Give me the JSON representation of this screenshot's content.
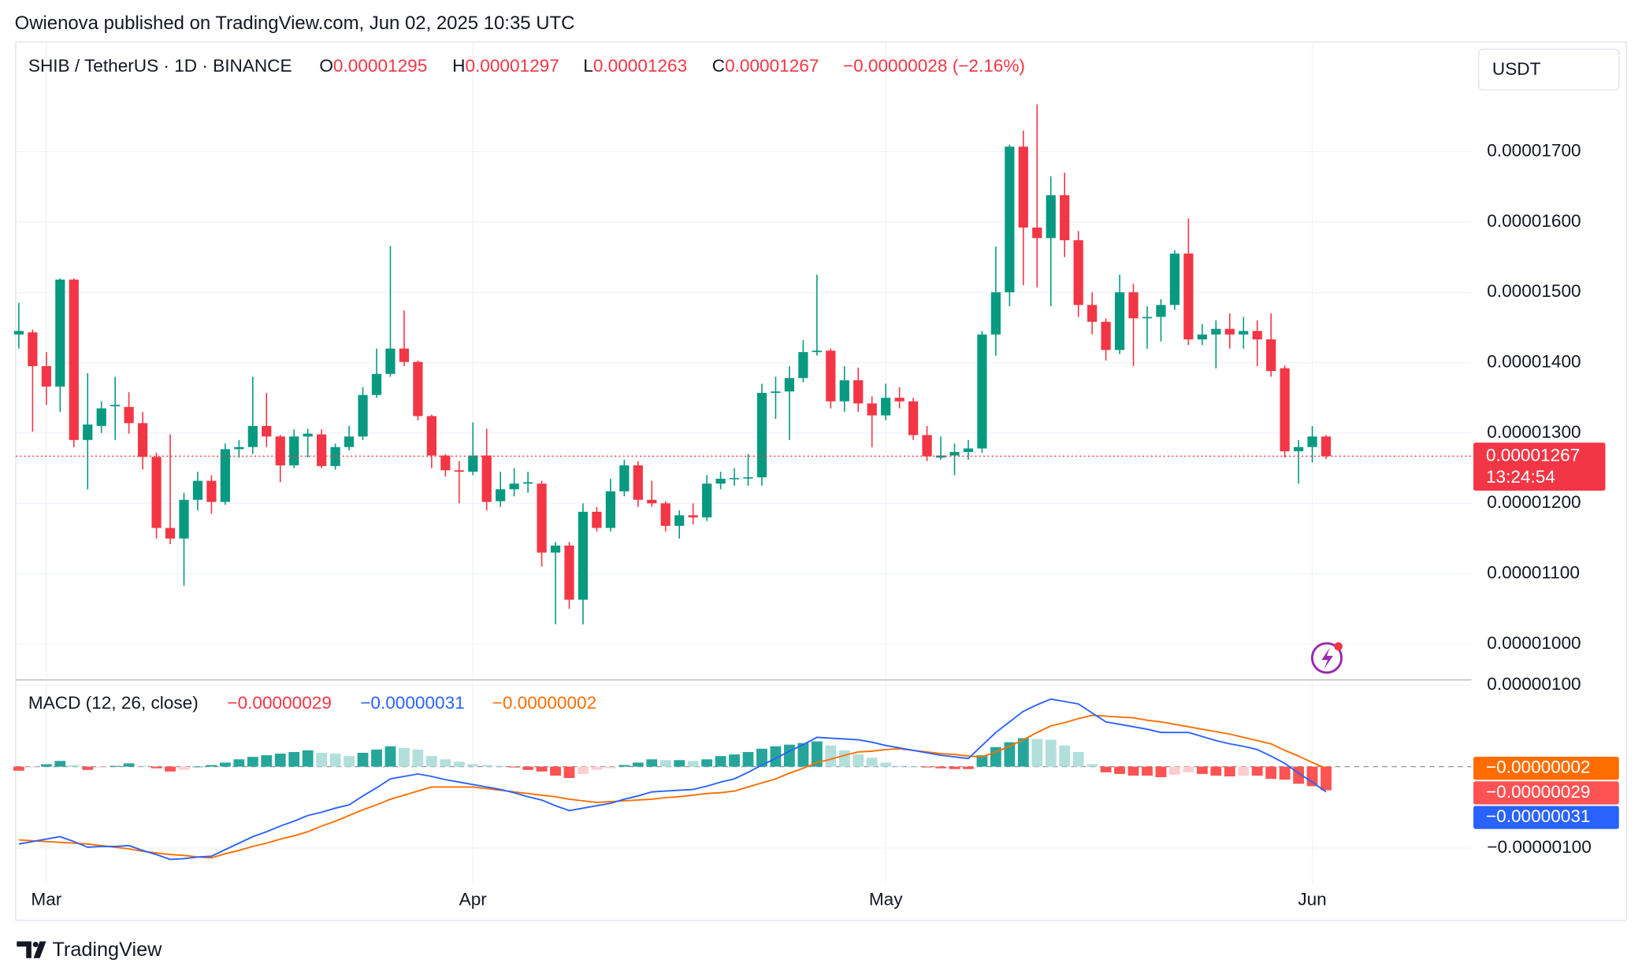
{
  "publisher": "Owienova published on TradingView.com, Jun 02, 2025 10:35 UTC",
  "footer": "TradingView",
  "chart_data": {
    "type": "candlestick",
    "header": {
      "symbol": "SHIB / TetherUS · 1D · BINANCE",
      "labels": [
        "O",
        "H",
        "L",
        "C"
      ],
      "change": "−0.00000028 (−2.16%)"
    },
    "currency": "USDT",
    "countdown": "13:24:54",
    "up_color": "#089981",
    "down_color": "#f23645",
    "grid": true,
    "categories": [
      null,
      null,
      null,
      null,
      null,
      null,
      null,
      null,
      null,
      null,
      null,
      null,
      null,
      null,
      null,
      null,
      null,
      null,
      null,
      null,
      null,
      null,
      null,
      null,
      null,
      null,
      null,
      null,
      null,
      null,
      null,
      null,
      null,
      null,
      null,
      null,
      null,
      null,
      null,
      null,
      null,
      null,
      null,
      null,
      null,
      null,
      null,
      null,
      null,
      null,
      null,
      null,
      null,
      null,
      null,
      null,
      null,
      null,
      null,
      null,
      null,
      null,
      null,
      null,
      null,
      null,
      null,
      null,
      null,
      null,
      null,
      null,
      null,
      null,
      null,
      null,
      null,
      null,
      null,
      null,
      null,
      null,
      null,
      null,
      null,
      null,
      null,
      null,
      null,
      null,
      null,
      null,
      null,
      null,
      null,
      null
    ],
    "xticks": [
      {
        "value": 2,
        "label": "Mar"
      },
      {
        "value": 33,
        "label": "Apr"
      },
      {
        "value": 63,
        "label": "May"
      },
      {
        "value": 94,
        "label": "Jun"
      }
    ],
    "ohlc": [
      [
        1.44e-05,
        1.485e-05,
        1.42e-05,
        1.445e-05
      ],
      [
        1.443e-05,
        1.447e-05,
        1.302e-05,
        1.395e-05
      ],
      [
        1.395e-05,
        1.415e-05,
        1.34e-05,
        1.366e-05
      ],
      [
        1.366e-05,
        1.52e-05,
        1.33e-05,
        1.518e-05
      ],
      [
        1.518e-05,
        1.52e-05,
        1.28e-05,
        1.29e-05
      ],
      [
        1.29e-05,
        1.385e-05,
        1.22e-05,
        1.312e-05
      ],
      [
        1.31e-05,
        1.345e-05,
        1.3e-05,
        1.335e-05
      ],
      [
        1.338e-05,
        1.38e-05,
        1.29e-05,
        1.34e-05
      ],
      [
        1.337e-05,
        1.358e-05,
        1.299e-05,
        1.314e-05
      ],
      [
        1.314e-05,
        1.33e-05,
        1.248e-05,
        1.266e-05
      ],
      [
        1.266e-05,
        1.272e-05,
        1.15e-05,
        1.165e-05
      ],
      [
        1.165e-05,
        1.298e-05,
        1.142e-05,
        1.15e-05
      ],
      [
        1.15e-05,
        1.215e-05,
        1.083e-05,
        1.205e-05
      ],
      [
        1.205e-05,
        1.245e-05,
        1.19e-05,
        1.232e-05
      ],
      [
        1.232e-05,
        1.24e-05,
        1.185e-05,
        1.202e-05
      ],
      [
        1.202e-05,
        1.285e-05,
        1.198e-05,
        1.277e-05
      ],
      [
        1.277e-05,
        1.29e-05,
        1.265e-05,
        1.28e-05
      ],
      [
        1.28e-05,
        1.38e-05,
        1.27e-05,
        1.31e-05
      ],
      [
        1.31e-05,
        1.357e-05,
        1.28e-05,
        1.295e-05
      ],
      [
        1.295e-05,
        1.297e-05,
        1.23e-05,
        1.254e-05
      ],
      [
        1.254e-05,
        1.305e-05,
        1.25e-05,
        1.295e-05
      ],
      [
        1.295e-05,
        1.306e-05,
        1.265e-05,
        1.299e-05
      ],
      [
        1.298e-05,
        1.305e-05,
        1.25e-05,
        1.253e-05
      ],
      [
        1.253e-05,
        1.285e-05,
        1.248e-05,
        1.28e-05
      ],
      [
        1.28e-05,
        1.31e-05,
        1.275e-05,
        1.295e-05
      ],
      [
        1.295e-05,
        1.365e-05,
        1.29e-05,
        1.354e-05
      ],
      [
        1.354e-05,
        1.42e-05,
        1.35e-05,
        1.384e-05
      ],
      [
        1.384e-05,
        1.566e-05,
        1.38e-05,
        1.42e-05
      ],
      [
        1.42e-05,
        1.474e-05,
        1.395e-05,
        1.401e-05
      ],
      [
        1.401e-05,
        1.403e-05,
        1.318e-05,
        1.324e-05
      ],
      [
        1.324e-05,
        1.326e-05,
        1.25e-05,
        1.268e-05
      ],
      [
        1.268e-05,
        1.27e-05,
        1.238e-05,
        1.247e-05
      ],
      [
        1.247e-05,
        1.26e-05,
        1.2e-05,
        1.245e-05
      ],
      [
        1.245e-05,
        1.315e-05,
        1.24e-05,
        1.268e-05
      ],
      [
        1.268e-05,
        1.306e-05,
        1.19e-05,
        1.202e-05
      ],
      [
        1.203e-05,
        1.245e-05,
        1.195e-05,
        1.22e-05
      ],
      [
        1.22e-05,
        1.25e-05,
        1.21e-05,
        1.228e-05
      ],
      [
        1.228e-05,
        1.245e-05,
        1.215e-05,
        1.23e-05
      ],
      [
        1.228e-05,
        1.232e-05,
        1.11e-05,
        1.13e-05
      ],
      [
        1.13e-05,
        1.145e-05,
        1.028e-05,
        1.14e-05
      ],
      [
        1.14e-05,
        1.145e-05,
        1.05e-05,
        1.063e-05
      ],
      [
        1.063e-05,
        1.2e-05,
        1.028e-05,
        1.188e-05
      ],
      [
        1.188e-05,
        1.195e-05,
        1.16e-05,
        1.165e-05
      ],
      [
        1.165e-05,
        1.235e-05,
        1.16e-05,
        1.217e-05
      ],
      [
        1.217e-05,
        1.262e-05,
        1.21e-05,
        1.254e-05
      ],
      [
        1.254e-05,
        1.26e-05,
        1.195e-05,
        1.205e-05
      ],
      [
        1.205e-05,
        1.232e-05,
        1.195e-05,
        1.2e-05
      ],
      [
        1.2e-05,
        1.203e-05,
        1.16e-05,
        1.168e-05
      ],
      [
        1.168e-05,
        1.19e-05,
        1.15e-05,
        1.183e-05
      ],
      [
        1.183e-05,
        1.2e-05,
        1.17e-05,
        1.18e-05
      ],
      [
        1.18e-05,
        1.24e-05,
        1.175e-05,
        1.228e-05
      ],
      [
        1.228e-05,
        1.245e-05,
        1.22e-05,
        1.235e-05
      ],
      [
        1.235e-05,
        1.25e-05,
        1.225e-05,
        1.236e-05
      ],
      [
        1.236e-05,
        1.27e-05,
        1.225e-05,
        1.237e-05
      ],
      [
        1.237e-05,
        1.37e-05,
        1.225e-05,
        1.357e-05
      ],
      [
        1.357e-05,
        1.38e-05,
        1.32e-05,
        1.359e-05
      ],
      [
        1.359e-05,
        1.395e-05,
        1.29e-05,
        1.378e-05
      ],
      [
        1.378e-05,
        1.432e-05,
        1.372e-05,
        1.415e-05
      ],
      [
        1.415e-05,
        1.525e-05,
        1.41e-05,
        1.417e-05
      ],
      [
        1.417e-05,
        1.42e-05,
        1.335e-05,
        1.345e-05
      ],
      [
        1.345e-05,
        1.395e-05,
        1.33e-05,
        1.375e-05
      ],
      [
        1.375e-05,
        1.393e-05,
        1.33e-05,
        1.342e-05
      ],
      [
        1.342e-05,
        1.352e-05,
        1.28e-05,
        1.325e-05
      ],
      [
        1.325e-05,
        1.37e-05,
        1.318e-05,
        1.35e-05
      ],
      [
        1.35e-05,
        1.365e-05,
        1.335e-05,
        1.345e-05
      ],
      [
        1.345e-05,
        1.35e-05,
        1.29e-05,
        1.297e-05
      ],
      [
        1.297e-05,
        1.31e-05,
        1.26e-05,
        1.267e-05
      ],
      [
        1.265e-05,
        1.295e-05,
        1.262e-05,
        1.268e-05
      ],
      [
        1.268e-05,
        1.285e-05,
        1.24e-05,
        1.273e-05
      ],
      [
        1.273e-05,
        1.29e-05,
        1.262e-05,
        1.278e-05
      ],
      [
        1.278e-05,
        1.445e-05,
        1.272e-05,
        1.44e-05
      ],
      [
        1.44e-05,
        1.565e-05,
        1.41e-05,
        1.5e-05
      ],
      [
        1.5e-05,
        1.71e-05,
        1.48e-05,
        1.707e-05
      ],
      [
        1.707e-05,
        1.73e-05,
        1.51e-05,
        1.592e-05
      ],
      [
        1.592e-05,
        1.767e-05,
        1.507e-05,
        1.577e-05
      ],
      [
        1.577e-05,
        1.665e-05,
        1.48e-05,
        1.638e-05
      ],
      [
        1.638e-05,
        1.67e-05,
        1.55e-05,
        1.574e-05
      ],
      [
        1.574e-05,
        1.587e-05,
        1.465e-05,
        1.482e-05
      ],
      [
        1.482e-05,
        1.5e-05,
        1.44e-05,
        1.458e-05
      ],
      [
        1.458e-05,
        1.463e-05,
        1.403e-05,
        1.418e-05
      ],
      [
        1.418e-05,
        1.525e-05,
        1.412e-05,
        1.5e-05
      ],
      [
        1.5e-05,
        1.512e-05,
        1.395e-05,
        1.463e-05
      ],
      [
        1.463e-05,
        1.48e-05,
        1.42e-05,
        1.465e-05
      ],
      [
        1.465e-05,
        1.49e-05,
        1.43e-05,
        1.482e-05
      ],
      [
        1.482e-05,
        1.56e-05,
        1.475e-05,
        1.555e-05
      ],
      [
        1.555e-05,
        1.605e-05,
        1.425e-05,
        1.433e-05
      ],
      [
        1.433e-05,
        1.455e-05,
        1.425e-05,
        1.44e-05
      ],
      [
        1.44e-05,
        1.46e-05,
        1.392e-05,
        1.448e-05
      ],
      [
        1.448e-05,
        1.47e-05,
        1.42e-05,
        1.44e-05
      ],
      [
        1.44e-05,
        1.465e-05,
        1.42e-05,
        1.445e-05
      ],
      [
        1.445e-05,
        1.46e-05,
        1.395e-05,
        1.433e-05
      ],
      [
        1.433e-05,
        1.47e-05,
        1.38e-05,
        1.388e-05
      ],
      [
        1.392e-05,
        1.396e-05,
        1.265e-05,
        1.274e-05
      ],
      [
        1.274e-05,
        1.29e-05,
        1.228e-05,
        1.28e-05
      ],
      [
        1.28e-05,
        1.31e-05,
        1.258e-05,
        1.295e-05
      ],
      [
        1.295e-05,
        1.297e-05,
        1.263e-05,
        1.267e-05
      ]
    ],
    "ylim": [
      9.52e-06,
      1.856e-05
    ],
    "yticks": [
      {
        "value": 1e-05,
        "label": "0.00001000"
      },
      {
        "value": 1.1e-05,
        "label": "0.00001100"
      },
      {
        "value": 1.2e-05,
        "label": "0.00001200"
      },
      {
        "value": 1.3e-05,
        "label": "0.00001300"
      },
      {
        "value": 1.4e-05,
        "label": "0.00001400"
      },
      {
        "value": 1.5e-05,
        "label": "0.00001500"
      },
      {
        "value": 1.6e-05,
        "label": "0.00001600"
      },
      {
        "value": 1.7e-05,
        "label": "0.00001700"
      }
    ],
    "macd": {
      "title": "MACD (12, 26, close)",
      "ylim": [
        -1.44e-06,
        1.04e-06
      ],
      "yticks": [
        {
          "value": -1e-06,
          "label": "−0.00000100"
        },
        {
          "value": 1e-06,
          "label": "0.00000100"
        }
      ],
      "histogram": {
        "values": [
          -5e-08,
          -1e-08,
          3e-08,
          7e-08,
          2e-08,
          -4e-08,
          -1e-08,
          1e-08,
          4e-08,
          1e-08,
          -2e-08,
          -6e-08,
          -4e-08,
          0,
          2e-08,
          5e-08,
          9e-08,
          1.2e-07,
          1.4e-07,
          1.6e-07,
          1.8e-07,
          2e-07,
          1.7e-07,
          1.6e-07,
          1.3e-07,
          1.7e-07,
          2.1e-07,
          2.5e-07,
          2.3e-07,
          2.1e-07,
          1.3e-07,
          9e-08,
          6e-08,
          3e-08,
          2e-08,
          1e-08,
          -1e-08,
          -4e-08,
          -6e-08,
          -1.1e-07,
          -1.4e-07,
          -9e-08,
          -4e-08,
          -2e-08,
          2e-08,
          5e-08,
          9e-08,
          8e-08,
          8e-08,
          7e-08,
          9e-08,
          1.3e-07,
          1.5e-07,
          1.8e-07,
          2.2e-07,
          2.5e-07,
          2.7e-07,
          2.9e-07,
          3.1e-07,
          2.6e-07,
          2e-07,
          1.5e-07,
          1.1e-07,
          5e-08,
          1e-08,
          0,
          -1e-08,
          -2e-08,
          -3e-08,
          -3e-08,
          1.4e-07,
          2.4e-07,
          3e-07,
          3.5e-07,
          3.4e-07,
          3.3e-07,
          2.6e-07,
          1.8e-07,
          3e-08,
          -7e-08,
          -9e-08,
          -1.1e-07,
          -1.1e-07,
          -1.3e-07,
          -1e-07,
          -7e-08,
          -9e-08,
          -1.1e-07,
          -1.2e-07,
          -1.1e-07,
          -1.1e-07,
          -1.5e-07,
          -1.6e-07,
          -2.1e-07,
          -2.4e-07,
          -2.9e-07
        ],
        "colors": {
          "up_rising": "#26a69a",
          "up_falling": "#b2dfdb",
          "down_falling": "#ff5252",
          "down_rising": "#ffcdd2"
        },
        "value_label": "−0.00000029"
      },
      "macd_line": {
        "color": "#2962ff",
        "values": [
          -9.5e-07,
          -9.2e-07,
          -8.9e-07,
          -8.6e-07,
          -9.2e-07,
          -9.9e-07,
          -9.8e-07,
          -9.8e-07,
          -9.7e-07,
          -1.03e-06,
          -1.08e-06,
          -1.14e-06,
          -1.13e-06,
          -1.11e-06,
          -1.1e-06,
          -1.02e-06,
          -9.4e-07,
          -8.6e-07,
          -8e-07,
          -7.3e-07,
          -6.7e-07,
          -6e-07,
          -5.6e-07,
          -5.1e-07,
          -4.7e-07,
          -3.6e-07,
          -2.6e-07,
          -1.5e-07,
          -1.2e-07,
          -9e-08,
          -1.2e-07,
          -1.6e-07,
          -1.9e-07,
          -2.2e-07,
          -2.5e-07,
          -2.8e-07,
          -3.2e-07,
          -3.7e-07,
          -4.1e-07,
          -4.8e-07,
          -5.4e-07,
          -5.1e-07,
          -4.8e-07,
          -4.5e-07,
          -4e-07,
          -3.6e-07,
          -3.1e-07,
          -3e-07,
          -2.9e-07,
          -2.8e-07,
          -2.4e-07,
          -1.9e-07,
          -1.5e-07,
          -7e-08,
          2e-08,
          1e-07,
          1.9e-07,
          2.7e-07,
          3.6e-07,
          3.5e-07,
          3.4e-07,
          3.3e-07,
          3e-07,
          2.6e-07,
          2.3e-07,
          2e-07,
          1.7e-07,
          1.4e-07,
          1.2e-07,
          1e-07,
          2.6e-07,
          4.2e-07,
          5.5e-07,
          6.8e-07,
          7.6e-07,
          8.3e-07,
          8e-07,
          7.7e-07,
          6.6e-07,
          5.5e-07,
          5.2e-07,
          4.9e-07,
          4.6e-07,
          4.2e-07,
          4.2e-07,
          4.2e-07,
          3.7e-07,
          3.2e-07,
          2.8e-07,
          2.5e-07,
          2.1e-07,
          1.3e-07,
          4e-08,
          -8e-08,
          -1.9e-07,
          -3.1e-07
        ],
        "value_label": "−0.00000031"
      },
      "signal_line": {
        "color": "#ff6d00",
        "values": [
          -9e-07,
          -9.1e-07,
          -9.2e-07,
          -9.3e-07,
          -9.4e-07,
          -9.5e-07,
          -9.7e-07,
          -9.9e-07,
          -1.01e-06,
          -1.04e-06,
          -1.06e-06,
          -1.08e-06,
          -1.09e-06,
          -1.11e-06,
          -1.12e-06,
          -1.07e-06,
          -1.03e-06,
          -9.8e-07,
          -9.4e-07,
          -8.9e-07,
          -8.5e-07,
          -8e-07,
          -7.3e-07,
          -6.7e-07,
          -6e-07,
          -5.3e-07,
          -4.7e-07,
          -4e-07,
          -3.5e-07,
          -3e-07,
          -2.5e-07,
          -2.5e-07,
          -2.5e-07,
          -2.5e-07,
          -2.7e-07,
          -2.9e-07,
          -3.1e-07,
          -3.3e-07,
          -3.5e-07,
          -3.7e-07,
          -4e-07,
          -4.2e-07,
          -4.4e-07,
          -4.3e-07,
          -4.2e-07,
          -4.1e-07,
          -4e-07,
          -3.8e-07,
          -3.7e-07,
          -3.5e-07,
          -3.3e-07,
          -3.2e-07,
          -3e-07,
          -2.5e-07,
          -2e-07,
          -1.5e-07,
          -8e-08,
          -2e-08,
          5e-08,
          9e-08,
          1.4e-07,
          1.8e-07,
          1.9e-07,
          2.1e-07,
          2.2e-07,
          2e-07,
          1.8e-07,
          1.6e-07,
          1.5e-07,
          1.3e-07,
          1.2e-07,
          1.8e-07,
          2.5e-07,
          3.3e-07,
          4.2e-07,
          5e-07,
          5.4e-07,
          5.9e-07,
          6.3e-07,
          6.2e-07,
          6.1e-07,
          6e-07,
          5.7e-07,
          5.5e-07,
          5.2e-07,
          4.9e-07,
          4.6e-07,
          4.3e-07,
          4e-07,
          3.6e-07,
          3.2e-07,
          2.8e-07,
          2e-07,
          1.3e-07,
          5e-08,
          -2e-08
        ],
        "value_label": "−0.00000002"
      }
    }
  }
}
